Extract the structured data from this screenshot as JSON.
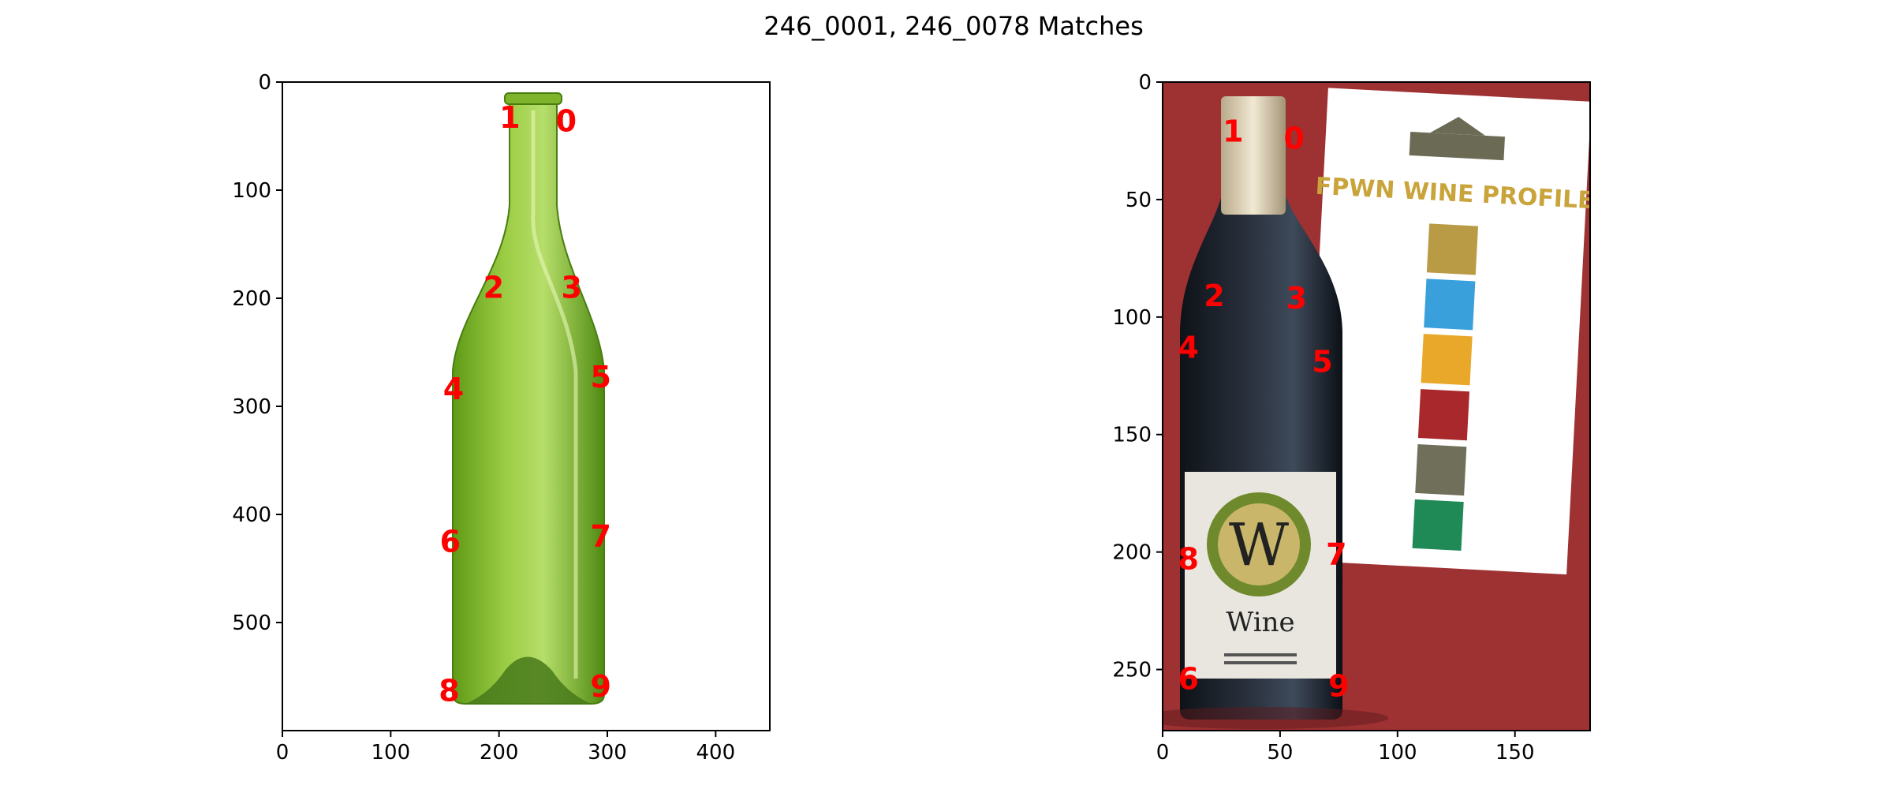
{
  "figure": {
    "title": "246_0001, 246_0078 Matches"
  },
  "colors": {
    "keypoint_label": "#ff0000",
    "background_right": "#9e3132",
    "bottle_green": "#8fc23a",
    "bottle_dark": "#1b1f27",
    "label_cream": "#e9e6df",
    "card_white": "#ffffff",
    "gold": "#c9a43b"
  },
  "chart_data": [
    {
      "type": "scatter",
      "image": "246_0001",
      "xlim": [
        0,
        450
      ],
      "ylim": [
        600,
        0
      ],
      "y_inverted": true,
      "xticks": [
        0,
        100,
        200,
        300,
        400
      ],
      "yticks": [
        0,
        100,
        200,
        300,
        400,
        500
      ],
      "keypoints": [
        {
          "label": "0",
          "x": 262,
          "y": 36
        },
        {
          "label": "1",
          "x": 210,
          "y": 33
        },
        {
          "label": "2",
          "x": 195,
          "y": 190
        },
        {
          "label": "3",
          "x": 267,
          "y": 190
        },
        {
          "label": "4",
          "x": 158,
          "y": 284
        },
        {
          "label": "5",
          "x": 294,
          "y": 273
        },
        {
          "label": "6",
          "x": 155,
          "y": 425
        },
        {
          "label": "7",
          "x": 294,
          "y": 420
        },
        {
          "label": "8",
          "x": 154,
          "y": 563
        },
        {
          "label": "9",
          "x": 294,
          "y": 559
        }
      ]
    },
    {
      "type": "scatter",
      "image": "246_0078",
      "xlim": [
        0,
        182
      ],
      "ylim": [
        276,
        0
      ],
      "y_inverted": true,
      "xticks": [
        0,
        50,
        100,
        150
      ],
      "yticks": [
        0,
        50,
        100,
        150,
        200,
        250
      ],
      "keypoints": [
        {
          "label": "0",
          "x": 56,
          "y": 24
        },
        {
          "label": "1",
          "x": 30,
          "y": 21
        },
        {
          "label": "2",
          "x": 22,
          "y": 91
        },
        {
          "label": "3",
          "x": 57,
          "y": 92
        },
        {
          "label": "4",
          "x": 11,
          "y": 113
        },
        {
          "label": "5",
          "x": 68,
          "y": 119
        },
        {
          "label": "6",
          "x": 11,
          "y": 254
        },
        {
          "label": "7",
          "x": 74,
          "y": 201
        },
        {
          "label": "8",
          "x": 11,
          "y": 203
        },
        {
          "label": "9",
          "x": 75,
          "y": 257
        }
      ]
    }
  ]
}
